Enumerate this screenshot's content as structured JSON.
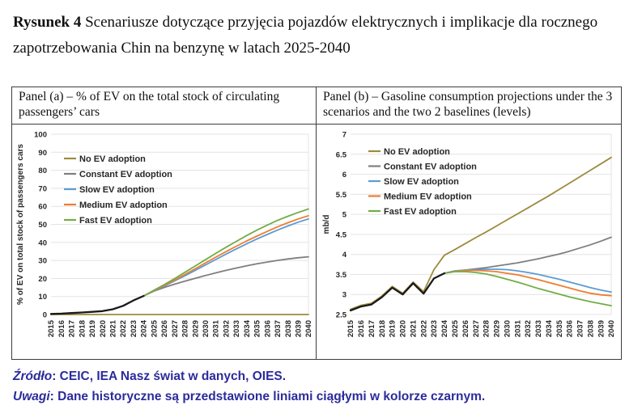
{
  "title": {
    "figure_label": "Rysunek 4",
    "text": " Scenariusze dotyczące przyjęcia pojazdów elektrycznych i implikacje dla rocznego zapotrzebowania Chin na benzynę w latach 2025-2040"
  },
  "panels": [
    {
      "header": "Panel (a) – % of EV on the total stock of circulating passengers’ cars"
    },
    {
      "header": "Panel (b) – Gasoline consumption projections under the 3 scenarios and the two 2 baselines (levels)"
    }
  ],
  "footer": {
    "source_label": "Źródło",
    "source_text": ": CEIC, IEA Nasz świat w danych, OIES.",
    "notes_label": "Uwagi",
    "notes_text": ": Dane historyczne są przedstawione liniami ciągłymi w kolorze czarnym."
  },
  "colors": {
    "no_ev": "#9C8B3C",
    "constant": "#7F7F7F",
    "slow": "#5B9BD5",
    "medium": "#ED7D31",
    "fast": "#70AD47",
    "historical": "#1a1a1a",
    "gridline": "#e3e3e3",
    "footer_text": "#2B2B9B"
  },
  "chart_data": [
    {
      "type": "line",
      "title": "Panel (a)",
      "xlabel": "",
      "ylabel": "% of EV on total stock of passengers cars",
      "ylim": [
        0,
        100
      ],
      "ytick_step": 10,
      "grid": true,
      "legend_position": "top-left",
      "x": [
        2015,
        2016,
        2017,
        2018,
        2019,
        2020,
        2021,
        2022,
        2023,
        2024,
        2025,
        2026,
        2027,
        2028,
        2029,
        2030,
        2031,
        2032,
        2033,
        2034,
        2035,
        2036,
        2037,
        2038,
        2039,
        2040
      ],
      "series": [
        {
          "name": "No EV adoption",
          "color": "#9C8B3C",
          "line_width": 1.8,
          "start_year": 2015,
          "in_legend": true,
          "values": [
            0,
            0,
            0,
            0,
            0,
            0,
            0,
            0,
            0,
            0,
            0,
            0,
            0,
            0,
            0,
            0,
            0,
            0,
            0,
            0,
            0,
            0,
            0,
            0,
            0,
            0
          ]
        },
        {
          "name": "Constant EV adoption",
          "color": "#7F7F7F",
          "line_width": 1.8,
          "start_year": 2024,
          "in_legend": true,
          "values": [
            10.3,
            13,
            15,
            16.8,
            18.5,
            20.1,
            21.6,
            23.1,
            24.5,
            25.8,
            27,
            28.1,
            29.1,
            30,
            30.8,
            31.5,
            32
          ]
        },
        {
          "name": "Slow EV adoption",
          "color": "#5B9BD5",
          "line_width": 1.8,
          "start_year": 2024,
          "in_legend": true,
          "values": [
            10.3,
            13.2,
            15.8,
            18.6,
            21.5,
            24.5,
            27.5,
            30.5,
            33.5,
            36.4,
            39.2,
            41.9,
            44.4,
            46.8,
            49.1,
            51.2,
            53
          ]
        },
        {
          "name": "Medium EV adoption",
          "color": "#ED7D31",
          "line_width": 1.8,
          "start_year": 2024,
          "in_legend": true,
          "values": [
            10.3,
            13.3,
            16.1,
            19.1,
            22.2,
            25.4,
            28.6,
            31.8,
            34.9,
            37.9,
            40.8,
            43.5,
            46.1,
            48.6,
            50.9,
            53,
            54.8
          ]
        },
        {
          "name": "Fast EV adoption",
          "color": "#70AD47",
          "line_width": 1.8,
          "start_year": 2024,
          "in_legend": true,
          "values": [
            10.3,
            13.5,
            16.6,
            19.9,
            23.4,
            26.9,
            30.4,
            33.9,
            37.3,
            40.6,
            43.8,
            46.8,
            49.6,
            52.2,
            54.5,
            56.6,
            58.5
          ]
        },
        {
          "name": "Historical",
          "color": "#1a1a1a",
          "line_width": 2.3,
          "start_year": 2015,
          "in_legend": false,
          "values": [
            0.3,
            0.5,
            0.8,
            1.1,
            1.5,
            1.9,
            2.9,
            4.8,
            7.8,
            10.3
          ]
        }
      ]
    },
    {
      "type": "line",
      "title": "Panel (b)",
      "xlabel": "",
      "ylabel": "mb/d",
      "ylim": [
        2.5,
        7
      ],
      "ytick_step": 0.5,
      "grid": true,
      "legend_position": "top-left",
      "x": [
        2015,
        2016,
        2017,
        2018,
        2019,
        2020,
        2021,
        2022,
        2023,
        2024,
        2025,
        2026,
        2027,
        2028,
        2029,
        2030,
        2031,
        2032,
        2033,
        2034,
        2035,
        2036,
        2037,
        2038,
        2039,
        2040
      ],
      "series": [
        {
          "name": "No EV adoption",
          "color": "#9C8B3C",
          "line_width": 1.8,
          "start_year": 2015,
          "in_legend": true,
          "values": [
            2.63,
            2.73,
            2.78,
            2.96,
            3.2,
            3.03,
            3.31,
            3.07,
            3.62,
            3.98,
            4.12,
            4.27,
            4.42,
            4.56,
            4.71,
            4.86,
            5.01,
            5.16,
            5.31,
            5.46,
            5.62,
            5.78,
            5.94,
            6.1,
            6.26,
            6.42
          ]
        },
        {
          "name": "Constant EV adoption",
          "color": "#7F7F7F",
          "line_width": 1.8,
          "start_year": 2024,
          "in_legend": true,
          "values": [
            3.53,
            3.58,
            3.61,
            3.64,
            3.67,
            3.71,
            3.75,
            3.79,
            3.84,
            3.89,
            3.95,
            4.01,
            4.08,
            4.16,
            4.24,
            4.33,
            4.43
          ]
        },
        {
          "name": "Slow EV adoption",
          "color": "#5B9BD5",
          "line_width": 1.8,
          "start_year": 2024,
          "in_legend": true,
          "values": [
            3.53,
            3.59,
            3.61,
            3.62,
            3.63,
            3.63,
            3.62,
            3.59,
            3.55,
            3.5,
            3.44,
            3.38,
            3.31,
            3.24,
            3.17,
            3.11,
            3.06
          ]
        },
        {
          "name": "Medium EV adoption",
          "color": "#ED7D31",
          "line_width": 1.8,
          "start_year": 2024,
          "in_legend": true,
          "values": [
            3.53,
            3.58,
            3.6,
            3.6,
            3.59,
            3.57,
            3.53,
            3.49,
            3.43,
            3.37,
            3.3,
            3.23,
            3.16,
            3.09,
            3.03,
            2.99,
            2.97
          ]
        },
        {
          "name": "Fast EV adoption",
          "color": "#70AD47",
          "line_width": 1.8,
          "start_year": 2024,
          "in_legend": true,
          "values": [
            3.53,
            3.57,
            3.57,
            3.55,
            3.51,
            3.45,
            3.38,
            3.31,
            3.23,
            3.15,
            3.08,
            3.01,
            2.94,
            2.88,
            2.82,
            2.77,
            2.72
          ]
        },
        {
          "name": "Historical",
          "color": "#1a1a1a",
          "line_width": 2.3,
          "start_year": 2015,
          "in_legend": false,
          "values": [
            2.6,
            2.7,
            2.75,
            2.93,
            3.17,
            3.0,
            3.28,
            3.02,
            3.4,
            3.53
          ]
        }
      ]
    }
  ]
}
